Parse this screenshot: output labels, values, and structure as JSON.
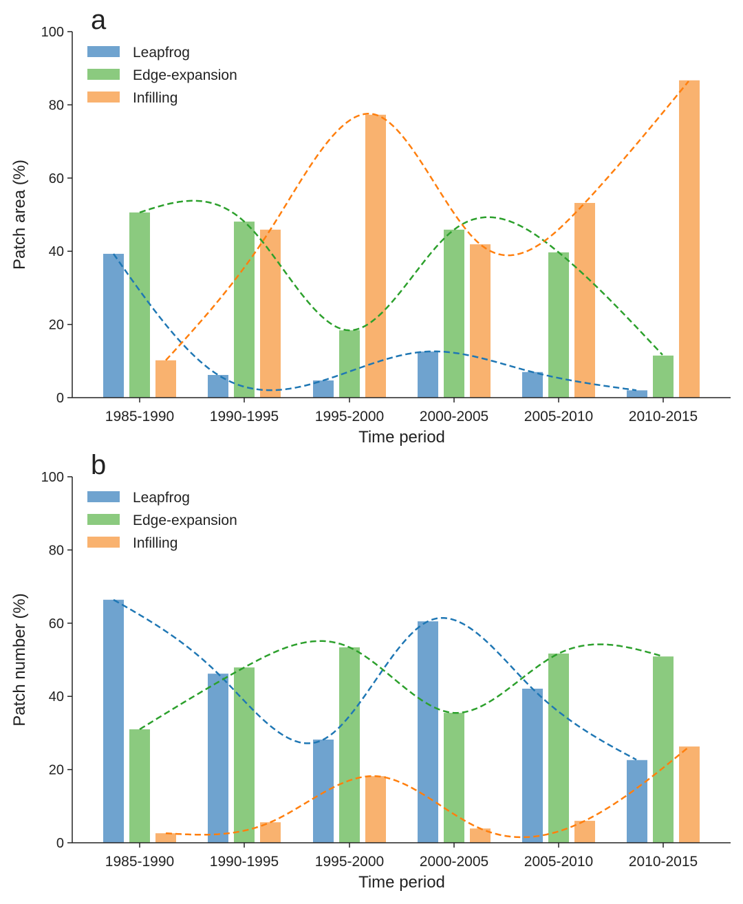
{
  "chart_data": [
    {
      "panel_label": "a",
      "type": "bar",
      "xlabel": "Time period",
      "ylabel": "Patch area (%)",
      "ylim": [
        0,
        100
      ],
      "yticks": [
        0,
        20,
        40,
        60,
        80,
        100
      ],
      "categories": [
        "1985-1990",
        "1990-1995",
        "1995-2000",
        "2000-2005",
        "2005-2010",
        "2010-2015"
      ],
      "legend_position": "top-left",
      "grid": false,
      "trend_lines": "dashed smooth curves per series",
      "series": [
        {
          "name": "Leapfrog",
          "color": "#6fa3cf",
          "line_color": "#1f77b4",
          "values": [
            39.3,
            6.2,
            4.7,
            12.6,
            7.0,
            2.0
          ]
        },
        {
          "name": "Edge-expansion",
          "color": "#8bca7f",
          "line_color": "#2ca02c",
          "values": [
            50.6,
            48.1,
            18.4,
            45.9,
            39.7,
            11.5
          ]
        },
        {
          "name": "Infilling",
          "color": "#f9b26f",
          "line_color": "#ff7f0e",
          "values": [
            10.2,
            45.9,
            77.3,
            41.9,
            53.2,
            86.7
          ]
        }
      ]
    },
    {
      "panel_label": "b",
      "type": "bar",
      "xlabel": "Time period",
      "ylabel": "Patch number (%)",
      "ylim": [
        0,
        100
      ],
      "yticks": [
        0,
        20,
        40,
        60,
        80,
        100
      ],
      "categories": [
        "1985-1990",
        "1990-1995",
        "1995-2000",
        "2000-2005",
        "2005-2010",
        "2010-2015"
      ],
      "legend_position": "top-left",
      "grid": false,
      "trend_lines": "dashed smooth curves per series",
      "series": [
        {
          "name": "Leapfrog",
          "color": "#6fa3cf",
          "line_color": "#1f77b4",
          "values": [
            66.4,
            46.2,
            28.2,
            60.5,
            42.1,
            22.6
          ]
        },
        {
          "name": "Edge-expansion",
          "color": "#8bca7f",
          "line_color": "#2ca02c",
          "values": [
            31.0,
            47.9,
            53.4,
            35.5,
            51.7,
            50.9
          ]
        },
        {
          "name": "Infilling",
          "color": "#f9b26f",
          "line_color": "#ff7f0e",
          "values": [
            2.6,
            5.6,
            18.2,
            3.9,
            6.0,
            26.3
          ]
        }
      ]
    }
  ]
}
